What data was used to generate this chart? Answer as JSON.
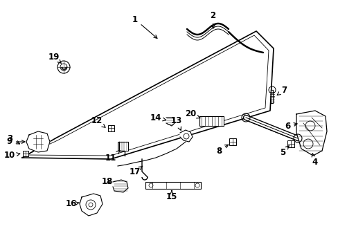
{
  "background_color": "#ffffff",
  "figsize": [
    4.89,
    3.6
  ],
  "dpi": 100,
  "text_color": "#000000",
  "line_color": "#000000",
  "label_fontsize": 7.5
}
